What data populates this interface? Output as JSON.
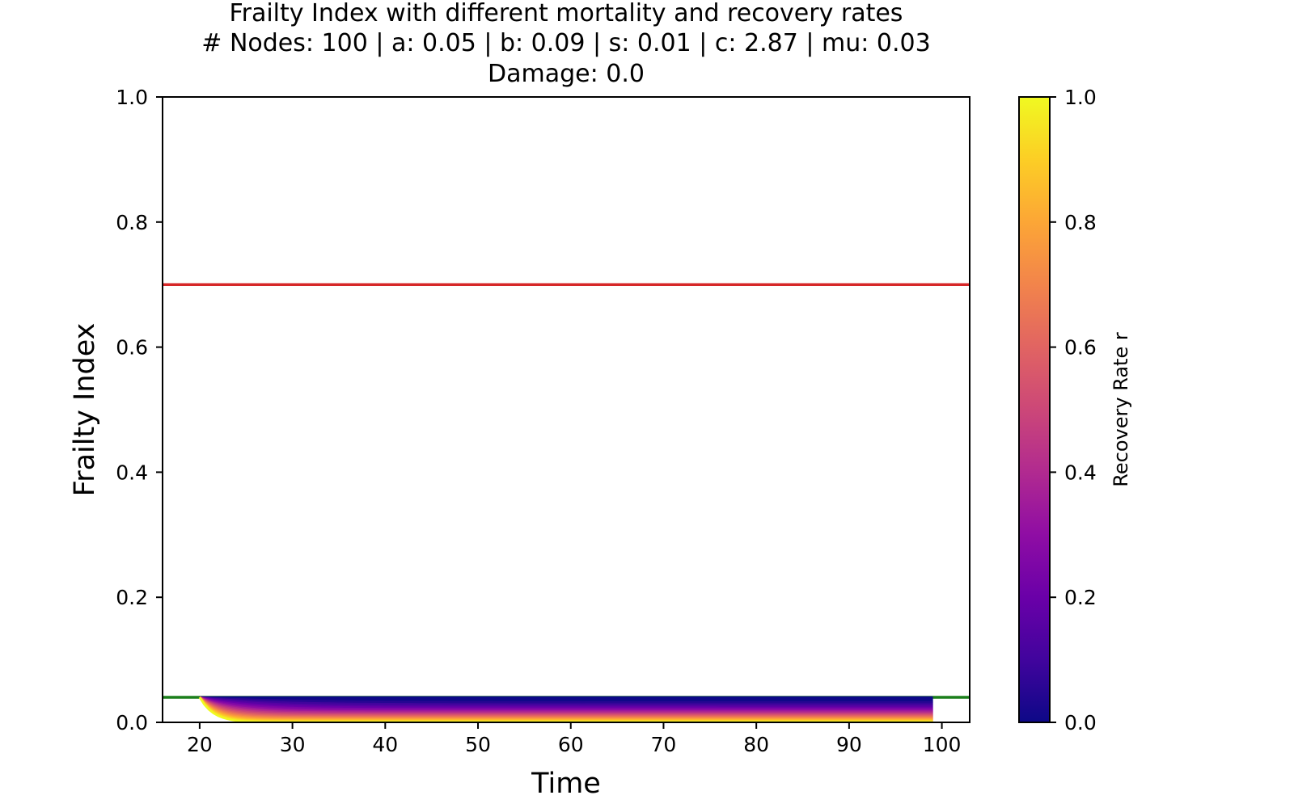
{
  "chart_data": {
    "type": "line",
    "title": "Frailty Index with different mortality and recovery rates",
    "subtitle_lines": [
      "# Nodes: 100 | a: 0.05 | b: 0.09 | s: 0.01 | c: 2.87 | mu: 0.03",
      "Damage: 0.0"
    ],
    "xlabel": "Time",
    "ylabel": "Frailty Index",
    "xlim": [
      16,
      103
    ],
    "ylim": [
      0.0,
      1.0
    ],
    "xticks": [
      20,
      30,
      40,
      50,
      60,
      70,
      80,
      90,
      100
    ],
    "yticks": [
      0.0,
      0.2,
      0.4,
      0.6,
      0.8,
      1.0
    ],
    "grid": false,
    "hlines": [
      {
        "y": 0.7,
        "color": "#d62728"
      },
      {
        "y": 0.04,
        "color": "#1a7f1a"
      }
    ],
    "series_family": {
      "description": "family of trajectories, colored by recovery rate r",
      "x_start": 20,
      "x_end": 99,
      "y_start": 0.04,
      "r_values": [
        0.0,
        0.05,
        0.1,
        0.15,
        0.2,
        0.25,
        0.3,
        0.35,
        0.4,
        0.45,
        0.5,
        0.55,
        0.6,
        0.65,
        0.7,
        0.75,
        0.8,
        0.85,
        0.9,
        0.95,
        1.0
      ],
      "y_end_at_r0": 0.04,
      "y_end_at_r1": 0.0
    },
    "colorbar": {
      "label": "Recovery Rate r",
      "colormap": "plasma",
      "range": [
        0.0,
        1.0
      ],
      "ticks": [
        0.0,
        0.2,
        0.4,
        0.6,
        0.8,
        1.0
      ]
    }
  }
}
